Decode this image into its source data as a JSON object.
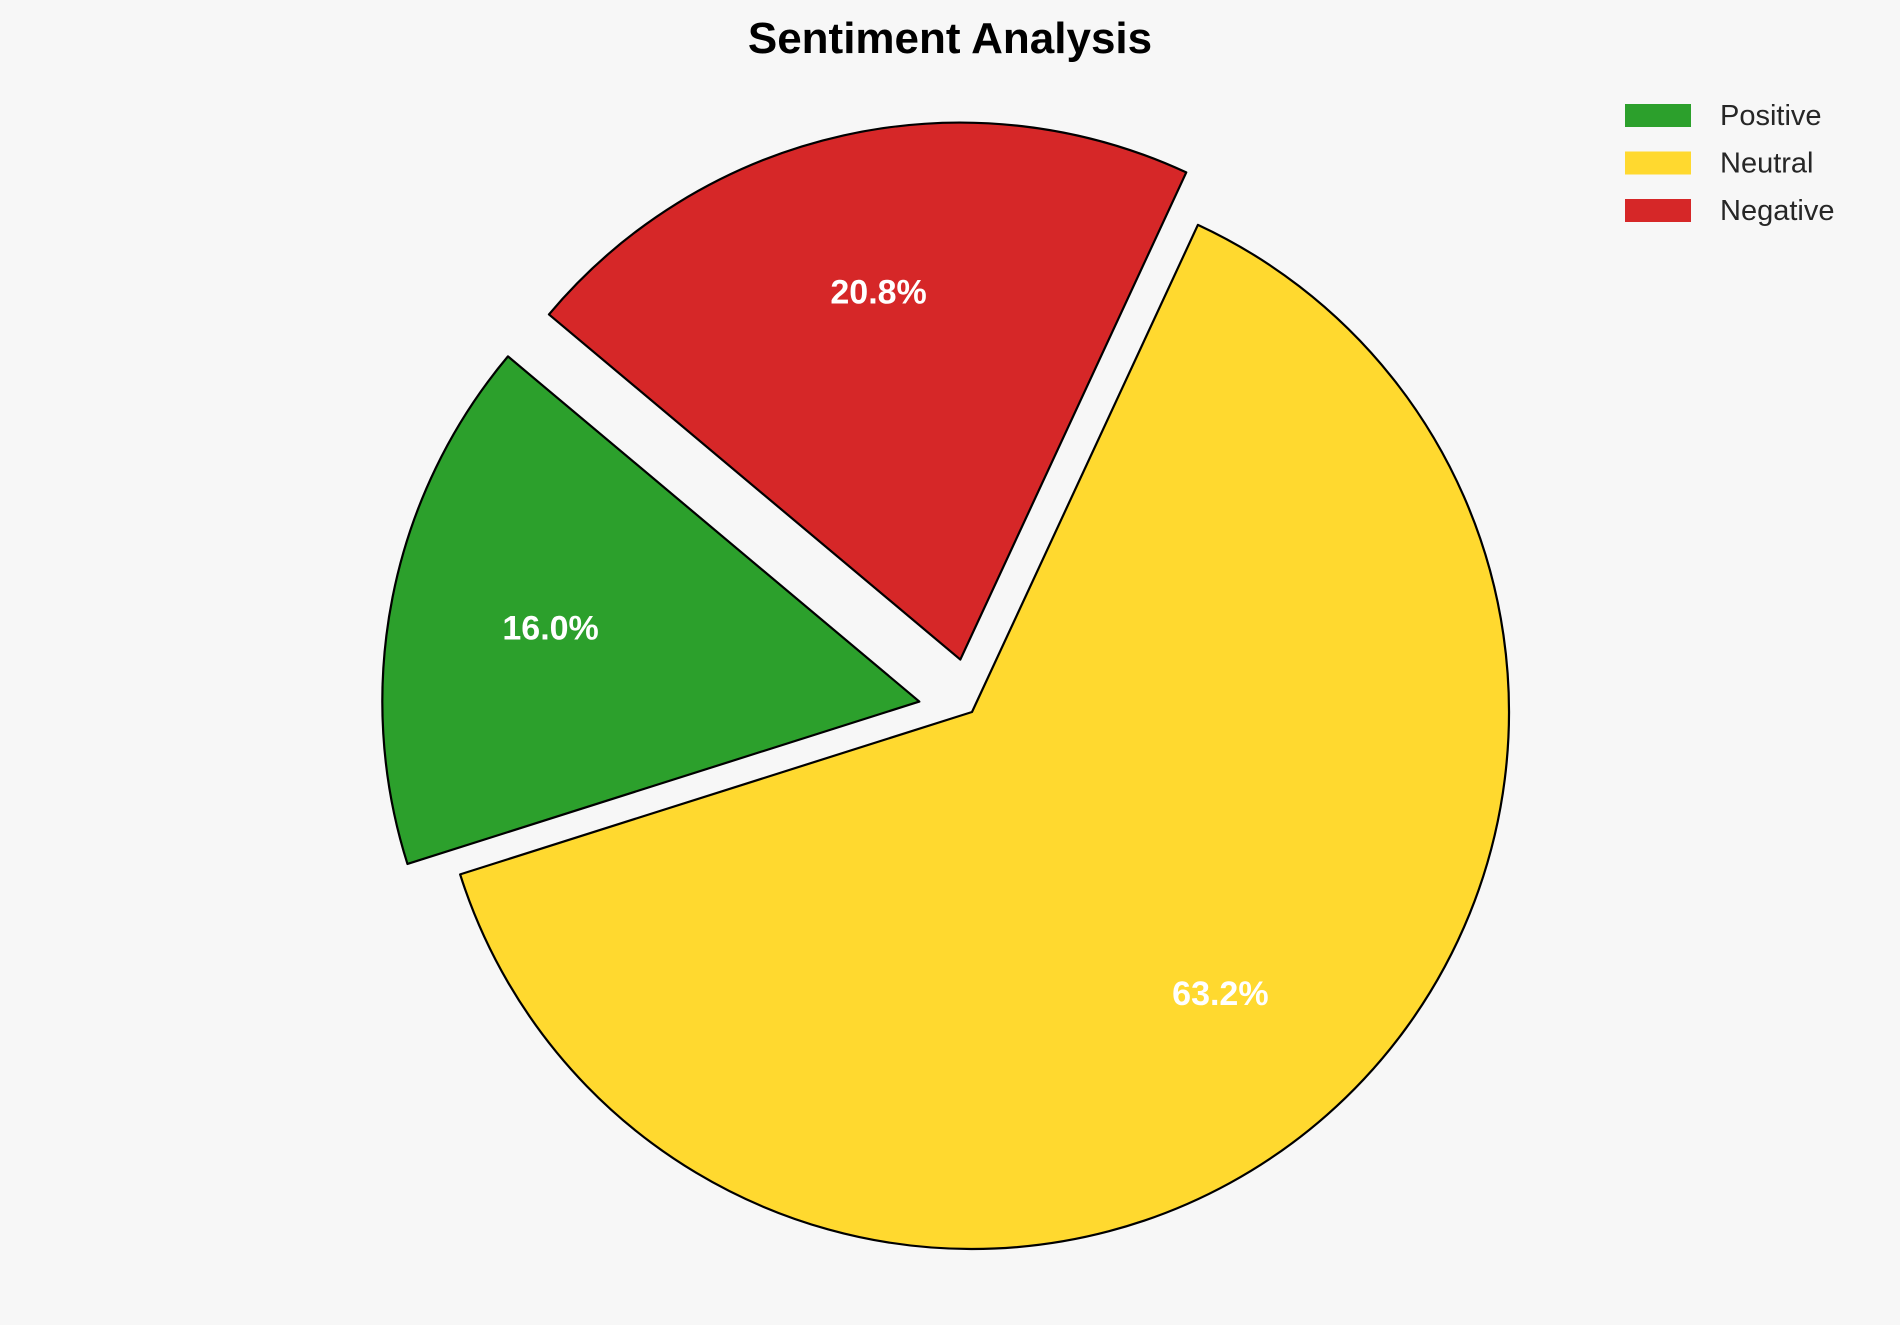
{
  "chart_data": {
    "type": "pie",
    "title": "Sentiment Analysis",
    "categories": [
      "Positive",
      "Neutral",
      "Negative"
    ],
    "values": [
      16.0,
      63.2,
      20.8
    ],
    "labels": [
      "16.0%",
      "63.2%",
      "20.8%"
    ],
    "colors": [
      "#2ca02c",
      "#ffd92f",
      "#d62728"
    ],
    "explode": [
      0.1,
      0,
      0.1
    ],
    "start_angle": 140,
    "direction": "counterclockwise",
    "legend": {
      "placement": "top-right",
      "entries": [
        "Positive",
        "Neutral",
        "Negative"
      ]
    }
  }
}
